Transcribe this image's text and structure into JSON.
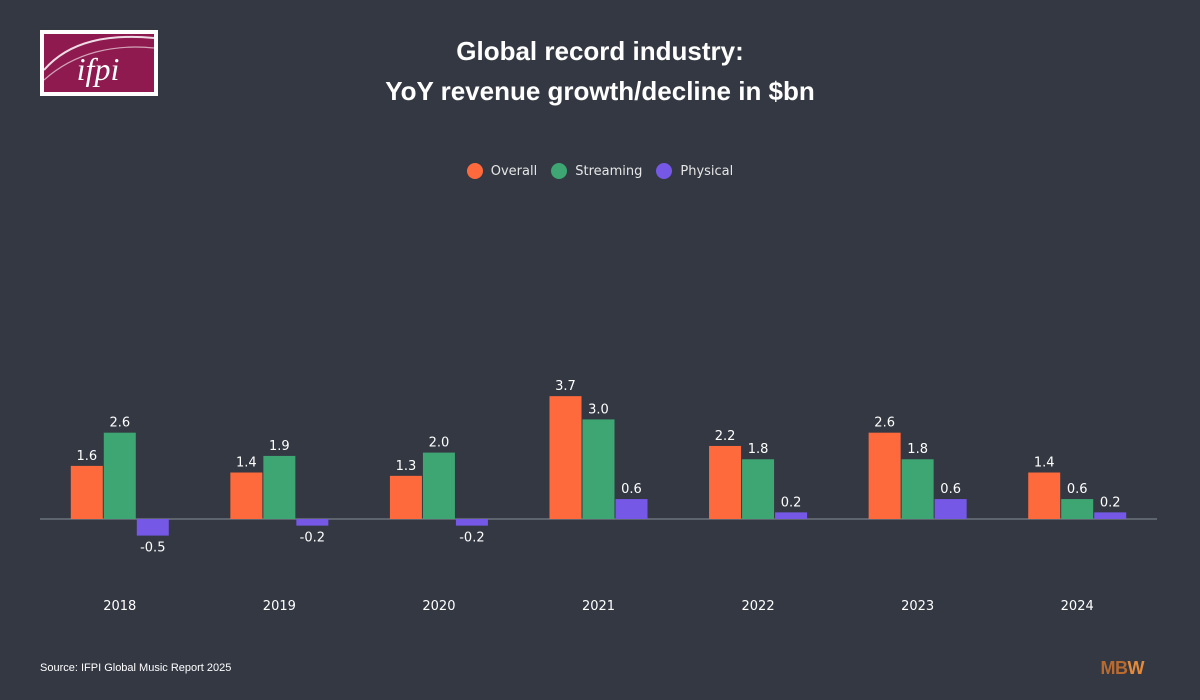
{
  "logo": {
    "text": "ifpi"
  },
  "title": {
    "line1": "Global record industry:",
    "line2": "YoY revenue growth/decline in $bn"
  },
  "colors": {
    "background": "#333842",
    "overall": "#ff6a3d",
    "streaming": "#3da672",
    "physical": "#7559e6",
    "axis": "#8a8f99"
  },
  "chart_data": {
    "type": "bar",
    "title": "Global record industry: YoY revenue growth/decline in $bn",
    "xlabel": "",
    "ylabel": "",
    "categories": [
      "2018",
      "2019",
      "2020",
      "2021",
      "2022",
      "2023",
      "2024"
    ],
    "series": [
      {
        "name": "Overall",
        "color": "#ff6a3d",
        "values": [
          1.6,
          1.4,
          1.3,
          3.7,
          2.2,
          2.6,
          1.4
        ]
      },
      {
        "name": "Streaming",
        "color": "#3da672",
        "values": [
          2.6,
          1.9,
          2.0,
          3.0,
          1.8,
          1.8,
          0.6
        ]
      },
      {
        "name": "Physical",
        "color": "#7559e6",
        "values": [
          -0.5,
          -0.2,
          -0.2,
          0.6,
          0.2,
          0.6,
          0.2
        ]
      }
    ],
    "ylim": [
      -1.6,
      7.5
    ],
    "grid": false,
    "legend": "top-center"
  },
  "source": "Source: IFPI Global Music Report 2025",
  "brand": {
    "mb": "MB",
    "w": "W"
  }
}
